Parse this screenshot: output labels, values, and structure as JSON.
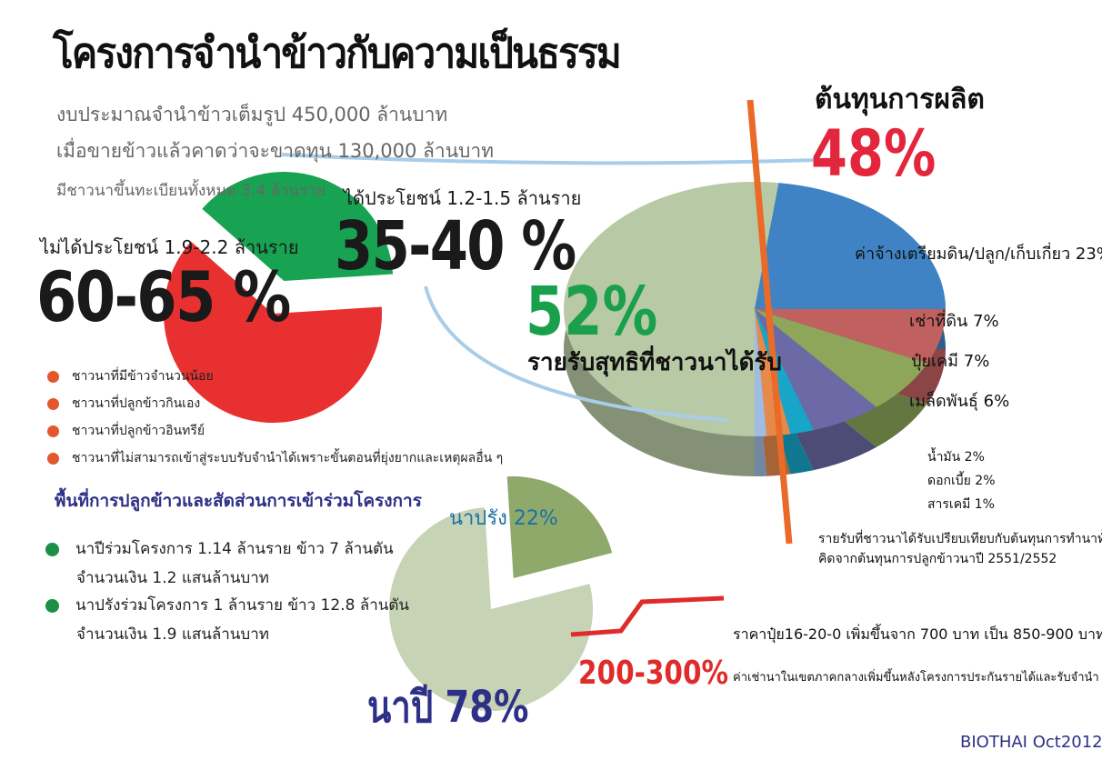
{
  "title": "โครงการจำนำข้าวกับความเป็นธรรม",
  "subtitle_lines": [
    "งบประมาณจำนำข้าวเต็มรูป 450,000 ล้านบาท",
    "เมื่อขายข้าวแล้วคาดว่าจะขาดทุน 130,000 ล้านบาท",
    "มีชาวนาขึ้นทะเบียนทั้งหมด 3.4 ล้านราย"
  ],
  "farmers": {
    "not_benefit_label": "ไม่ได้ประโยชน์ 1.9-2.2 ล้านราย",
    "not_benefit_pct": "60-65 %",
    "benefit_label": "ได้ประโยชน์ 1.2-1.5 ล้านราย",
    "benefit_pct": "35-40 %",
    "reasons": [
      "ชาวนาที่มีข้าวจำนวนน้อย",
      "ชาวนาที่ปลูกข้าวกินเอง",
      "ชาวนาที่ปลูกข้าวอินทรีย์",
      "ชาวนาที่ไม่สามารถเข้าสู่ระบบรับจำนำได้เพราะขั้นตอนที่ยุ่งยากและเหตุผลอื่น ๆ"
    ]
  },
  "area": {
    "heading": "พื้นที่การปลูกข้าวและสัดส่วนการเข้าร่วมโครงการ",
    "items": [
      {
        "line1": "นาปีร่วมโครงการ 1.14 ล้านราย ข้าว 7 ล้านตัน",
        "line2": "จำนวนเงิน 1.2 แสนล้านบาท"
      },
      {
        "line1": "นาปรังร่วมโครงการ 1 ล้านราย ข้าว 12.8 ล้านตัน",
        "line2": "จำนวนเงิน 1.9 แสนล้านบาท"
      }
    ],
    "irrigated_label": "นาปรัง 22%",
    "rainfed_label": "นาปี 78%"
  },
  "cost": {
    "title": "ต้นทุนการผลิต",
    "pct": "48%",
    "income_pct": "52%",
    "income_label": "รายรับสุทธิที่ชาวนาได้รับ",
    "items": [
      {
        "label": "ค่าจ้างเตรียมดิน/ปลูก/เก็บเกี่ยว 23%"
      },
      {
        "label": "เช่าที่ดิน 7%"
      },
      {
        "label": "ปุ๋ยเคมี 7%"
      },
      {
        "label": "เมล็ดพันธุ์ 6%"
      },
      {
        "label": "น้ำมัน 2%"
      },
      {
        "label": "ดอกเบี้ย 2%"
      },
      {
        "label": "สารเคมี 1%"
      }
    ],
    "footnote": [
      "รายรับที่ชาวนาได้รับเปรียบเทียบกับต้นทุนการทำนาทั้งหมด",
      "คิดจากต้นทุนการปลูกข้าวนาปี 2551/2552"
    ]
  },
  "price": {
    "fertilizer_note": "ราคาปุ๋ย16-20-0 เพิ่มขึ้นจาก 700 บาท เป็น 850-900 บาท",
    "rent_note": "ค่าเช่านาในเขตภาคกลางเพิ่มขึ้นหลังโครงการประกันรายได้และรับจำนำ",
    "rise_pct": "200-300%"
  },
  "source": "BIOTHAI Oct2012",
  "chart_data": [
    {
      "type": "pie",
      "categories": [
        "ไม่ได้ประโยชน์",
        "ได้ประโยชน์"
      ],
      "values": [
        62.5,
        37.5
      ],
      "colors": [
        "#e83030",
        "#17a352"
      ]
    },
    {
      "type": "pie",
      "categories": [
        "รายรับสุทธิ",
        "ค่าจ้างเตรียมดิน/ปลูก/เก็บเกี่ยว",
        "เช่าที่ดิน",
        "ปุ๋ยเคมี",
        "เมล็ดพันธุ์",
        "น้ำมัน",
        "ดอกเบี้ย",
        "สารเคมี"
      ],
      "values": [
        52,
        23,
        7,
        7,
        6,
        2,
        2,
        1
      ],
      "colors": [
        "#b8c9a5",
        "#3f83c4",
        "#c0605f",
        "#8da65a",
        "#6b6aa6",
        "#17a6c8",
        "#e7894a",
        "#9fbde0"
      ]
    },
    {
      "type": "pie",
      "categories": [
        "นาปี",
        "นาปรัง"
      ],
      "values": [
        78,
        22
      ],
      "colors": [
        "#c6d3b4",
        "#8ea96a"
      ]
    }
  ]
}
